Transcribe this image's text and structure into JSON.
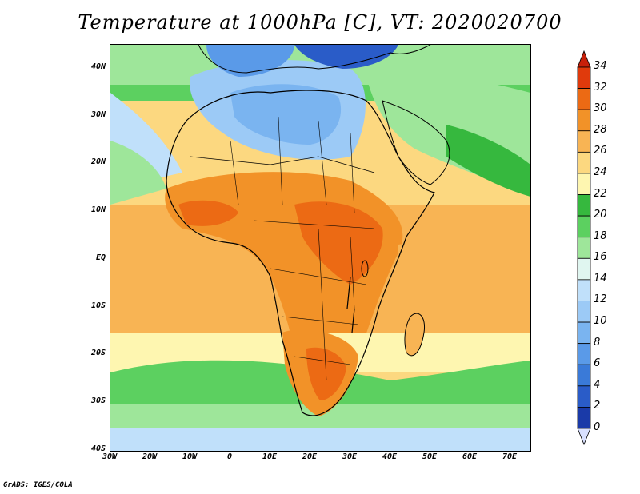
{
  "title": "Temperature at 1000hPa [C], VT: 2020020700",
  "credit": "GrADS: IGES/COLA",
  "map": {
    "lon_range": [
      -30,
      75
    ],
    "lat_range": [
      -40,
      45
    ],
    "lat_ticks": [
      {
        "value": 40,
        "label": "40N"
      },
      {
        "value": 30,
        "label": "30N"
      },
      {
        "value": 20,
        "label": "20N"
      },
      {
        "value": 10,
        "label": "10N"
      },
      {
        "value": 0,
        "label": "EQ"
      },
      {
        "value": -10,
        "label": "10S"
      },
      {
        "value": -20,
        "label": "20S"
      },
      {
        "value": -30,
        "label": "30S"
      },
      {
        "value": -40,
        "label": "40S"
      }
    ],
    "lon_ticks": [
      {
        "value": -30,
        "label": "30W"
      },
      {
        "value": -20,
        "label": "20W"
      },
      {
        "value": -10,
        "label": "10W"
      },
      {
        "value": 0,
        "label": "0"
      },
      {
        "value": 10,
        "label": "10E"
      },
      {
        "value": 20,
        "label": "20E"
      },
      {
        "value": 30,
        "label": "30E"
      },
      {
        "value": 40,
        "label": "40E"
      },
      {
        "value": 50,
        "label": "50E"
      },
      {
        "value": 60,
        "label": "60E"
      },
      {
        "value": 70,
        "label": "70E"
      }
    ]
  },
  "colorbar": {
    "levels": [
      {
        "value": 0,
        "label": "0",
        "color": "#0a1a7a"
      },
      {
        "value": 2,
        "label": "2",
        "color": "#1a3aa8"
      },
      {
        "value": 4,
        "label": "4",
        "color": "#2a5cc8"
      },
      {
        "value": 6,
        "label": "6",
        "color": "#3a7ad8"
      },
      {
        "value": 8,
        "label": "8",
        "color": "#5a9ae8"
      },
      {
        "value": 10,
        "label": "10",
        "color": "#7ab4f0"
      },
      {
        "value": 12,
        "label": "12",
        "color": "#9ccaf6"
      },
      {
        "value": 14,
        "label": "14",
        "color": "#c0e0fa"
      },
      {
        "value": 16,
        "label": "16",
        "color": "#e0f6f0"
      },
      {
        "value": 18,
        "label": "18",
        "color": "#9ee69a"
      },
      {
        "value": 20,
        "label": "20",
        "color": "#5cd060"
      },
      {
        "value": 22,
        "label": "22",
        "color": "#36b83e"
      },
      {
        "value": 24,
        "label": "24",
        "color": "#fef6b0"
      },
      {
        "value": 26,
        "label": "26",
        "color": "#fcd880"
      },
      {
        "value": 28,
        "label": "28",
        "color": "#f8b454"
      },
      {
        "value": 30,
        "label": "30",
        "color": "#f29228"
      },
      {
        "value": 32,
        "label": "32",
        "color": "#ec6a14"
      },
      {
        "value": 34,
        "label": "34",
        "color": "#e03a0c"
      }
    ],
    "over_color": "#c8200a",
    "under_color": "#d8e0ff"
  }
}
